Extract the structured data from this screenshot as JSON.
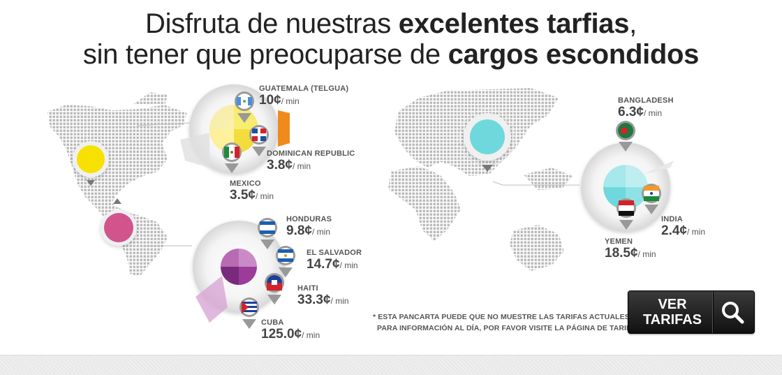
{
  "headline": {
    "line1_regular": "Disfruta de nuestras",
    "line1_bold": "excelentes tarfias",
    "line1_end": ",",
    "line2_regular": "sin tener que preocuparse de",
    "line2_bold": "cargos escondidos"
  },
  "rates": {
    "guatemala": {
      "country": "GUATEMALA   (TELGUA)",
      "price": "10¢",
      "unit": "/ min"
    },
    "dominican": {
      "country": "DOMINICAN REPUBLIC",
      "price": "3.8¢",
      "unit": "/ min"
    },
    "mexico": {
      "country": "MEXICO",
      "price": "3.5¢",
      "unit": "/ min"
    },
    "honduras": {
      "country": "HONDURAS",
      "price": "9.8¢",
      "unit": "/ min"
    },
    "el_salvador": {
      "country": "EL SALVADOR",
      "price": "14.7¢",
      "unit": "/ min"
    },
    "haiti": {
      "country": "HAITI",
      "price": "33.3¢",
      "unit": "/ min"
    },
    "cuba": {
      "country": "CUBA",
      "price": "125.0¢",
      "unit": "/ min"
    },
    "bangladesh": {
      "country": "BANGLADESH",
      "price": "6.3¢",
      "unit": "/ min"
    },
    "india": {
      "country": "INDIA",
      "price": "2.4¢",
      "unit": "/ min"
    },
    "yemen": {
      "country": "YEMEN",
      "price": "18.5¢",
      "unit": "/ min"
    }
  },
  "disclaimer": {
    "line1": "* ESTA PANCARTA PUEDE QUE NO MUESTRE LAS TARIFAS ACTUALES.",
    "line2": "PARA INFORMACIÓN AL DÍA, POR FAVOR VISITE LA PÁGINA DE TARIFAS."
  },
  "cta": {
    "line1": "VER",
    "line2": "TARIFAS",
    "icon": "search-icon"
  },
  "colors": {
    "yellow": "#f7e100",
    "magenta": "#d1548c",
    "cyan": "#6fd8dc",
    "orange": "#f08a1c",
    "purple": "#9b3b9a"
  }
}
